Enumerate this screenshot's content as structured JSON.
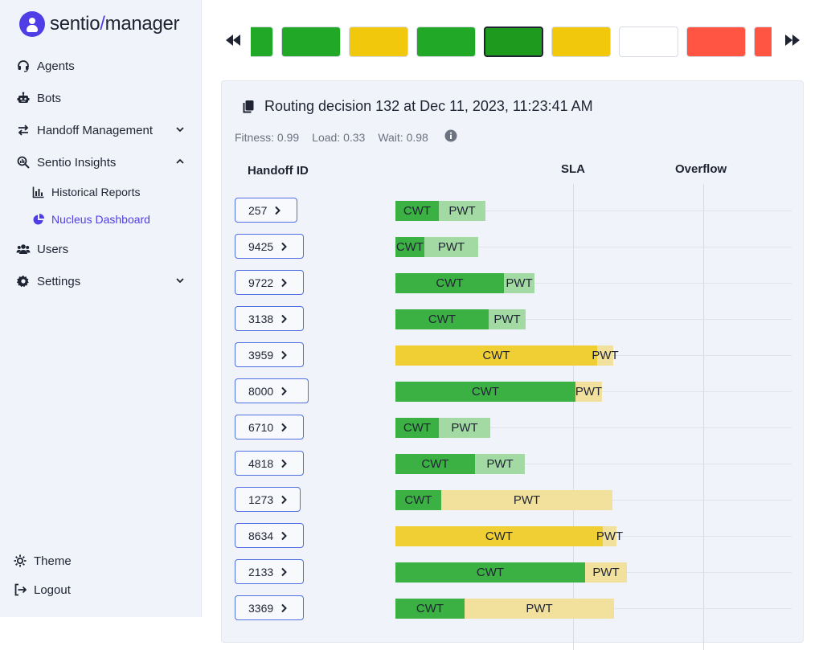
{
  "app": {
    "logo_text_a": "sentio",
    "logo_text_slash": "/",
    "logo_text_b": "manager"
  },
  "sidebar": {
    "items": [
      {
        "label": "Agents",
        "icon": "headset-icon"
      },
      {
        "label": "Bots",
        "icon": "robot-icon"
      },
      {
        "label": "Handoff Management",
        "icon": "arrows-icon",
        "expanded": false
      },
      {
        "label": "Sentio Insights",
        "icon": "search-chart-icon",
        "expanded": true
      },
      {
        "label": "Users",
        "icon": "users-icon"
      },
      {
        "label": "Settings",
        "icon": "gear-icon",
        "expanded": false
      }
    ],
    "sub_items": [
      {
        "label": "Historical Reports",
        "icon": "bar-chart-icon"
      },
      {
        "label": "Nucleus Dashboard",
        "icon": "pie-chart-icon",
        "active": true
      }
    ],
    "footer": {
      "theme": "Theme",
      "logout": "Logout"
    }
  },
  "timeline": {
    "colors": {
      "green": "#22a827",
      "dark_green": "#1e9a1e",
      "yellow": "#f2c80c",
      "white": "#ffffff",
      "red": "#ff5542"
    },
    "swatches": [
      "green",
      "green",
      "yellow",
      "green",
      "dark_green",
      "yellow",
      "white",
      "red",
      "red"
    ],
    "selected_index": 4
  },
  "card": {
    "title": "Routing decision 132 at Dec 11, 2023, 11:23:41 AM",
    "metrics": {
      "fitness": "Fitness: 0.99",
      "load": "Load: 0.33",
      "wait": "Wait: 0.98"
    },
    "headers": {
      "handoff_id": "Handoff ID",
      "sla": "SLA",
      "overflow": "Overflow"
    },
    "cwt_label": "CWT",
    "pwt_label": "PWT",
    "rows": [
      {
        "id": "257",
        "cwt": 54,
        "pwt": 58,
        "color": "green"
      },
      {
        "id": "9425",
        "cwt": 36,
        "pwt": 67,
        "color": "green"
      },
      {
        "id": "9722",
        "cwt": 135,
        "pwt": 38,
        "color": "green"
      },
      {
        "id": "3138",
        "cwt": 116,
        "pwt": 46,
        "color": "green"
      },
      {
        "id": "3959",
        "cwt": 251,
        "pwt": 20,
        "color": "yellow"
      },
      {
        "id": "8000",
        "cwt": 224,
        "pwt": 33,
        "color": "green_yellow"
      },
      {
        "id": "6710",
        "cwt": 54,
        "pwt": 64,
        "color": "green"
      },
      {
        "id": "4818",
        "cwt": 99,
        "pwt": 62,
        "color": "green"
      },
      {
        "id": "1273",
        "cwt": 57,
        "pwt": 213,
        "color": "green_yellow"
      },
      {
        "id": "8634",
        "cwt": 258,
        "pwt": 17,
        "color": "yellow"
      },
      {
        "id": "2133",
        "cwt": 236,
        "pwt": 52,
        "color": "green_yellow"
      },
      {
        "id": "3369",
        "cwt": 86,
        "pwt": 186,
        "color": "green_yellow"
      }
    ]
  }
}
